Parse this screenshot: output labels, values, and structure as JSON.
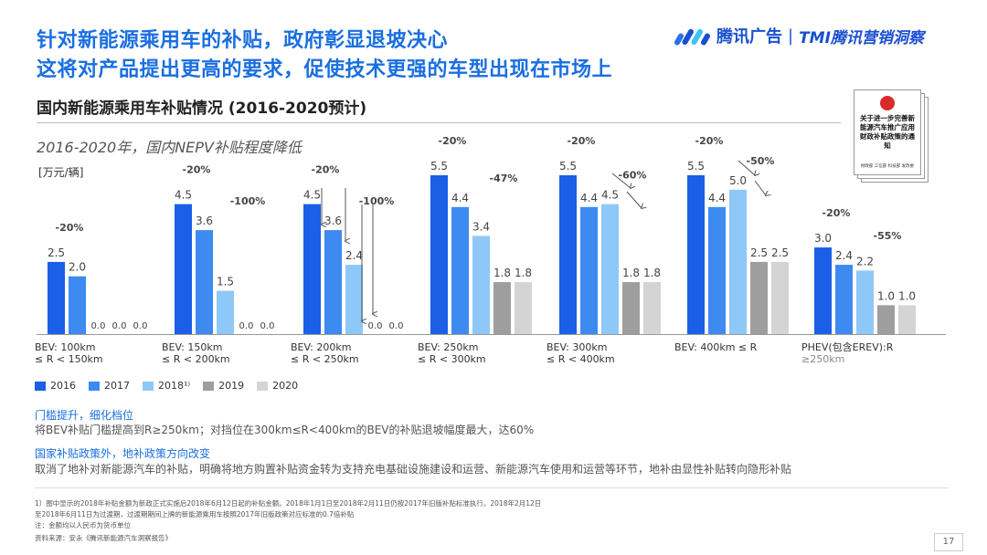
{
  "header": {
    "title_line1": "针对新能源乘用车的补贴，政府彰显退坡决心",
    "title_line2": "这将对产品提出更高的要求，促使技术更强的车型出现在市场上",
    "logo_brand": "腾讯广告",
    "logo_sub": "TMI腾讯营销洞察"
  },
  "section_title": "国内新能源乘用车补贴情况 (2016-2020预计)",
  "subtitle": "2016-2020年，国内NEPV补贴程度降低",
  "document": {
    "title": "关于进一步完善新能源汽车推广应用财政补贴政策的通知",
    "footer": "财政部 工信部 科技部 发改委"
  },
  "colors": {
    "2016": "#1a5fe6",
    "2017": "#3d8af0",
    "2018": "#8ec8f8",
    "2019": "#9e9e9e",
    "2020": "#d4d4d4",
    "accent": "#1a6fe0"
  },
  "chart_data": {
    "type": "bar",
    "unit_label": "[万元/辆]",
    "categories": [
      [
        "BEV: 100km",
        "≤ R < 150km"
      ],
      [
        "BEV: 150km",
        "≤ R < 200km"
      ],
      [
        "BEV: 200km",
        "≤ R < 250km"
      ],
      [
        "BEV: 250km",
        "≤ R < 300km"
      ],
      [
        "BEV: 300km",
        "≤ R < 400km"
      ],
      [
        "BEV: 400km ≤ R"
      ],
      [
        "PHEV(包含EREV):R",
        "≥250km"
      ]
    ],
    "series": [
      {
        "name": "2016",
        "values": [
          2.5,
          4.5,
          4.5,
          5.5,
          5.5,
          5.5,
          3.0
        ]
      },
      {
        "name": "2017",
        "values": [
          2.0,
          3.6,
          3.6,
          4.4,
          4.4,
          4.4,
          2.4
        ]
      },
      {
        "name": "2018¹⁾",
        "values": [
          0.0,
          1.5,
          2.4,
          3.4,
          4.5,
          5.0,
          2.2
        ]
      },
      {
        "name": "2019",
        "values": [
          0.0,
          0.0,
          0.0,
          1.8,
          1.8,
          2.5,
          1.0
        ]
      },
      {
        "name": "2020",
        "values": [
          0.0,
          0.0,
          0.0,
          1.8,
          1.8,
          2.5,
          1.0
        ]
      }
    ],
    "value_labels": [
      [
        "2.5",
        "2.0",
        "0.0",
        "0.0",
        "0.0"
      ],
      [
        "4.5",
        "3.6",
        "1.5",
        "0.0",
        "0.0"
      ],
      [
        "4.5",
        "3.6",
        "2.4",
        "0.0",
        "0.0"
      ],
      [
        "5.5",
        "4.4",
        "3.4",
        "1.8",
        "1.8"
      ],
      [
        "5.5",
        "4.4",
        "4.5",
        "1.8",
        "1.8"
      ],
      [
        "5.5",
        "4.4",
        "5.0",
        "2.5",
        "2.5"
      ],
      [
        "3.0",
        "2.4",
        "2.2",
        "1.0",
        "1.0"
      ]
    ],
    "annotations": [
      {
        "category": 0,
        "labels": [
          "-20%"
        ]
      },
      {
        "category": 1,
        "labels": [
          "-20%",
          "-100%"
        ]
      },
      {
        "category": 2,
        "labels": [
          "-20%",
          "-100%"
        ]
      },
      {
        "category": 3,
        "labels": [
          "-20%",
          "-47%"
        ]
      },
      {
        "category": 4,
        "labels": [
          "-20%",
          "-60%"
        ]
      },
      {
        "category": 5,
        "labels": [
          "-20%",
          "-50%"
        ]
      },
      {
        "category": 6,
        "labels": [
          "-20%",
          "-55%"
        ]
      }
    ],
    "ylim": [
      0,
      6
    ],
    "grid": false,
    "legend_placement": "bottom-left"
  },
  "notes": [
    {
      "head": "门槛提升，细化档位",
      "body": "将BEV补贴门槛提高到R≥250km；对挡位在300km≤R<400km的BEV的补贴退坡幅度最大，达60%"
    },
    {
      "head": "国家补贴政策外，地补政策方向改变",
      "body": "取消了地补对新能源汽车的补贴，明确将地方购置补贴资金转为支持充电基础设施建设和运营、新能源汽车使用和运营等环节，地补由显性补贴转向隐形补贴"
    }
  ],
  "footnotes": [
    "1）图中显示的2018年补贴金额为新政正式实施后2018年6月12日起的补贴金额。2018年1月1日至2018年2月11日仍按2017年旧版补贴标准执行。2018年2月12日",
    "至2018年6月11日为过渡期，过渡期期间上牌的新能源乘用车按照2017年旧版政策对应标准的0.7倍补贴",
    "注：金额均以人民币为货币单位",
    "资料来源：安永《腾讯新能源汽车洞察报告》"
  ],
  "page_number": "17"
}
